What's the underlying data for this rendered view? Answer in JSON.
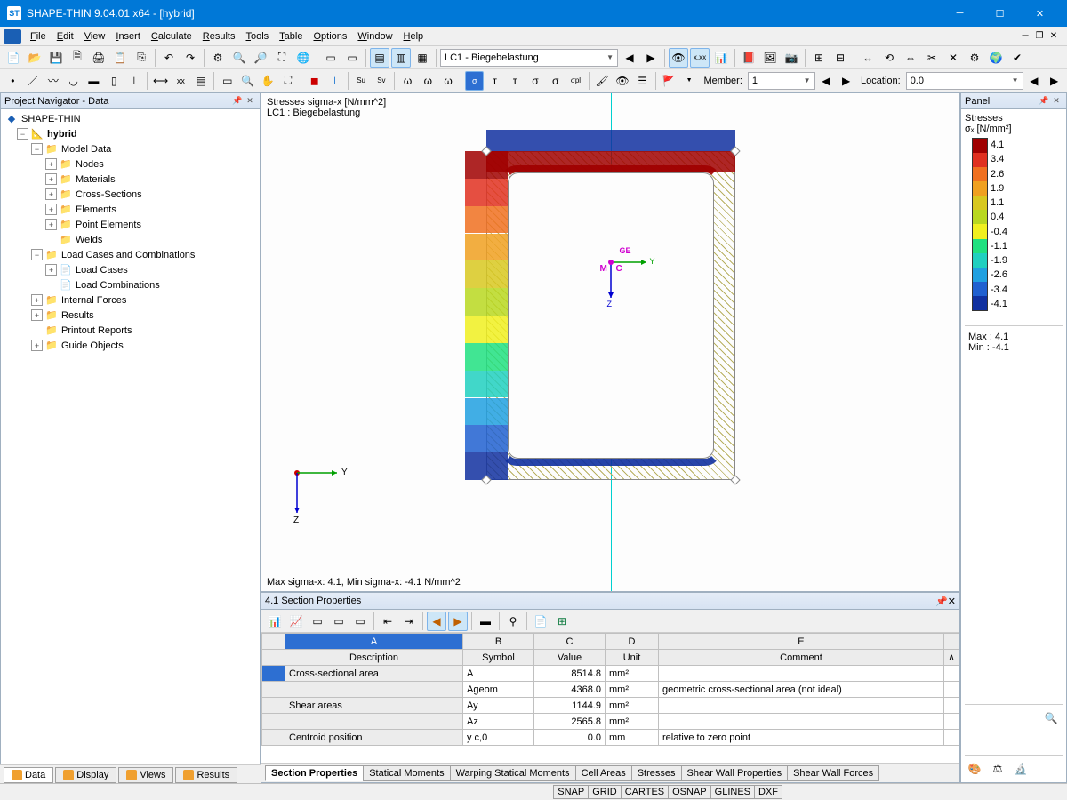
{
  "app": {
    "title": "SHAPE-THIN 9.04.01 x64 - [hybrid]",
    "menus": [
      "File",
      "Edit",
      "View",
      "Insert",
      "Calculate",
      "Results",
      "Tools",
      "Table",
      "Options",
      "Window",
      "Help"
    ],
    "loadcase_combo": "LC1 - Biegebelastung",
    "member_label": "Member:",
    "member_value": "1",
    "location_label": "Location:",
    "location_value": "0.0"
  },
  "navigator": {
    "title": "Project Navigator - Data",
    "root": "SHAPE-THIN",
    "project": "hybrid",
    "nodes": [
      {
        "label": "Model Data",
        "depth": 2,
        "exp": "-",
        "icon": "folder"
      },
      {
        "label": "Nodes",
        "depth": 3,
        "exp": "+",
        "icon": "folder"
      },
      {
        "label": "Materials",
        "depth": 3,
        "exp": "+",
        "icon": "folder"
      },
      {
        "label": "Cross-Sections",
        "depth": 3,
        "exp": "+",
        "icon": "folder"
      },
      {
        "label": "Elements",
        "depth": 3,
        "exp": "+",
        "icon": "folder"
      },
      {
        "label": "Point Elements",
        "depth": 3,
        "exp": "+",
        "icon": "folder"
      },
      {
        "label": "Welds",
        "depth": 3,
        "exp": "",
        "icon": "folder"
      },
      {
        "label": "Load Cases and Combinations",
        "depth": 2,
        "exp": "-",
        "icon": "folder"
      },
      {
        "label": "Load Cases",
        "depth": 3,
        "exp": "+",
        "icon": "item"
      },
      {
        "label": "Load Combinations",
        "depth": 3,
        "exp": "",
        "icon": "item"
      },
      {
        "label": "Internal Forces",
        "depth": 2,
        "exp": "+",
        "icon": "folder"
      },
      {
        "label": "Results",
        "depth": 2,
        "exp": "+",
        "icon": "folder"
      },
      {
        "label": "Printout Reports",
        "depth": 2,
        "exp": "",
        "icon": "folder"
      },
      {
        "label": "Guide Objects",
        "depth": 2,
        "exp": "+",
        "icon": "folder"
      }
    ],
    "bottom_tabs": [
      "Data",
      "Display",
      "Views",
      "Results"
    ]
  },
  "viewport": {
    "info_line1": "Stresses sigma-x [N/mm^2]",
    "info_line2": "LC1 : Biegebelastung",
    "summary": "Max sigma-x: 4.1, Min sigma-x: -4.1 N/mm^2",
    "center_labels": {
      "M": "M",
      "C": "C",
      "ge": "GE",
      "y": "Y",
      "z": "Z"
    },
    "axis_labels": {
      "Y": "Y",
      "Z": "Z"
    },
    "section": {
      "outer_w": 280,
      "outer_h": 370,
      "wall": 24,
      "background": "#fdfdfd",
      "hatch": "#b8b060"
    }
  },
  "legend": {
    "title": "Panel",
    "heading": "Stresses",
    "sub": "σₓ [N/mm²]",
    "colors": [
      "#a00000",
      "#e03020",
      "#f07020",
      "#f0a020",
      "#d8c820",
      "#b8d820",
      "#f0f020",
      "#20e080",
      "#20d0c0",
      "#20a0e0",
      "#2060d0",
      "#1030a0"
    ],
    "values": [
      "4.1",
      "3.4",
      "2.6",
      "1.9",
      "1.1",
      "0.4",
      "-0.4",
      "-1.1",
      "-1.9",
      "-2.6",
      "-3.4",
      "-4.1"
    ],
    "max_label": "Max  :",
    "max_value": "4.1",
    "min_label": "Min  :",
    "min_value": "-4.1"
  },
  "sheet": {
    "title": "4.1 Section Properties",
    "col_letters": [
      "A",
      "B",
      "C",
      "D",
      "E"
    ],
    "headers": [
      "Description",
      "Symbol",
      "Value",
      "Unit",
      "Comment"
    ],
    "rows": [
      {
        "desc": "Cross-sectional area",
        "sym": "A",
        "val": "8514.8",
        "unit": "mm²",
        "comment": ""
      },
      {
        "desc": "",
        "sym": "Ageom",
        "val": "4368.0",
        "unit": "mm²",
        "comment": "geometric cross-sectional area (not ideal)"
      },
      {
        "desc": "Shear areas",
        "sym": "Ay",
        "val": "1144.9",
        "unit": "mm²",
        "comment": ""
      },
      {
        "desc": "",
        "sym": "Az",
        "val": "2565.8",
        "unit": "mm²",
        "comment": ""
      },
      {
        "desc": "Centroid position",
        "sym": "y c,0",
        "val": "0.0",
        "unit": "mm",
        "comment": "relative to zero point"
      }
    ],
    "tabs": [
      "Section Properties",
      "Statical Moments",
      "Warping Statical Moments",
      "Cell Areas",
      "Stresses",
      "Shear Wall Properties",
      "Shear Wall Forces"
    ]
  },
  "status": {
    "items": [
      "SNAP",
      "GRID",
      "CARTES",
      "OSNAP",
      "GLINES",
      "DXF"
    ]
  },
  "colors": {
    "titlebar": "#0078d7",
    "accent": "#2d6fd2"
  }
}
